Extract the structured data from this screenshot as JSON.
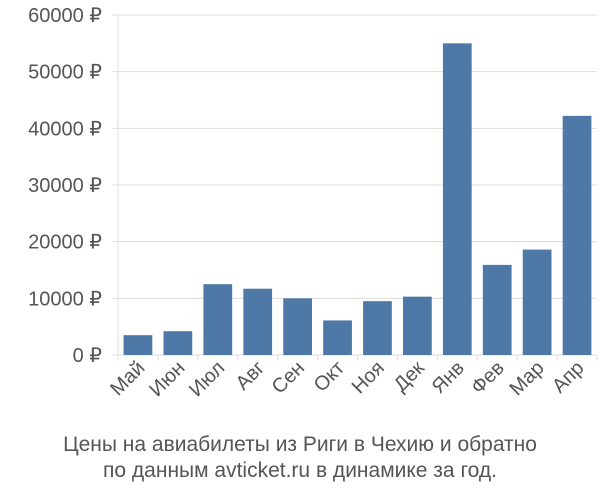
{
  "chart_data": {
    "type": "bar",
    "categories": [
      "Май",
      "Июн",
      "Июл",
      "Авг",
      "Сен",
      "Окт",
      "Ноя",
      "Дек",
      "Янв",
      "Фев",
      "Мар",
      "Апр"
    ],
    "values": [
      3500,
      4200,
      12500,
      11700,
      10000,
      6100,
      9500,
      10300,
      55000,
      15900,
      18600,
      42200
    ],
    "ylim": [
      0,
      60000
    ],
    "yticks": [
      0,
      10000,
      20000,
      30000,
      40000,
      50000,
      60000
    ],
    "ytick_labels": [
      "0 ₽",
      "10000 ₽",
      "20000 ₽",
      "30000 ₽",
      "40000 ₽",
      "50000 ₽",
      "60000 ₽"
    ],
    "grid": true,
    "bar_color": "#4e79a7",
    "grid_color": "#dddddd"
  },
  "caption": {
    "line1": "Цены на авиабилеты из Риги в Чехию и обратно",
    "line2": "по данным avticket.ru в динамике за год."
  }
}
